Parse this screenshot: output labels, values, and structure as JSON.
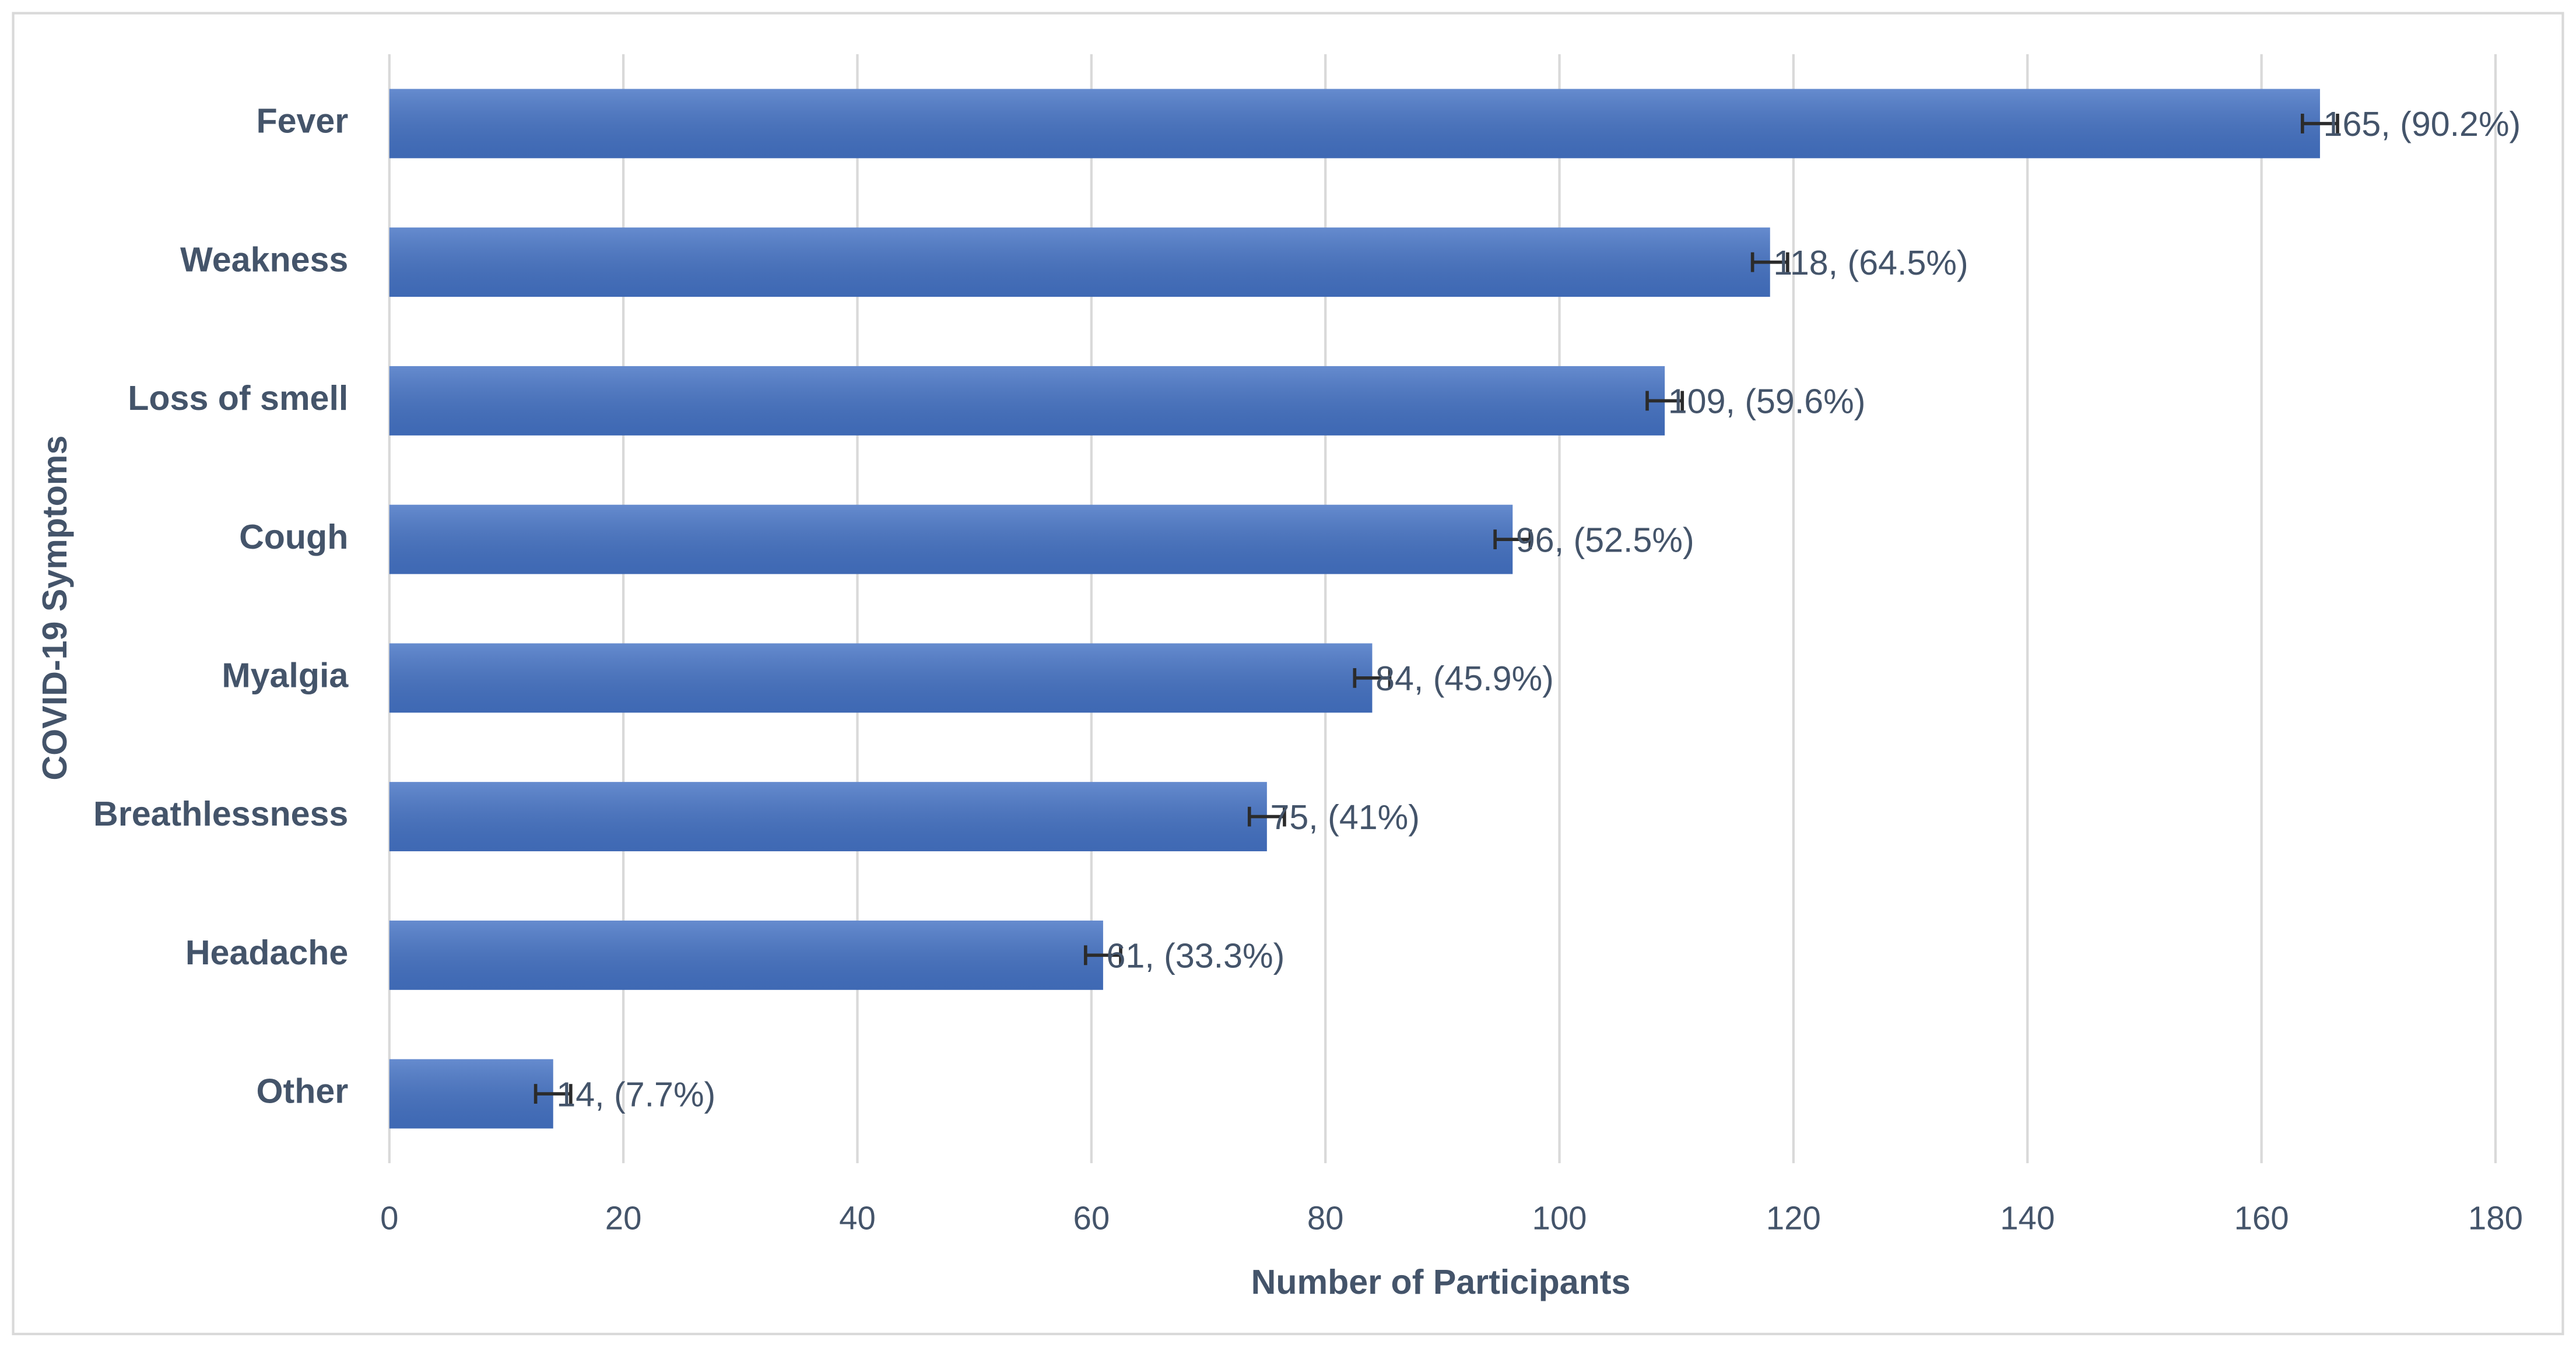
{
  "chart_data": {
    "type": "bar",
    "orientation": "horizontal",
    "x_label": "Number of Participants",
    "y_label": "COVID-19 Symptoms",
    "categories": [
      "Fever",
      "Weakness",
      "Loss of smell",
      "Cough",
      "Myalgia",
      "Breathlessness",
      "Headache",
      "Other"
    ],
    "values": [
      165,
      118,
      109,
      96,
      84,
      75,
      61,
      14
    ],
    "value_labels": [
      "165, (90.2%)",
      "118, (64.5%)",
      "109, (59.6%)",
      "96, (52.5%)",
      "84, (45.9%)",
      "75, (41%)",
      "61, (33.3%)",
      "14, (7.7%)"
    ],
    "errors": [
      1.5,
      1.5,
      1.5,
      1.5,
      1.5,
      1.5,
      1.5,
      1.5
    ],
    "color": "#4472c4",
    "xlim": [
      0,
      180
    ],
    "xticks": [
      0,
      20,
      40,
      60,
      80,
      100,
      120,
      140,
      160,
      180
    ],
    "grid": true
  }
}
